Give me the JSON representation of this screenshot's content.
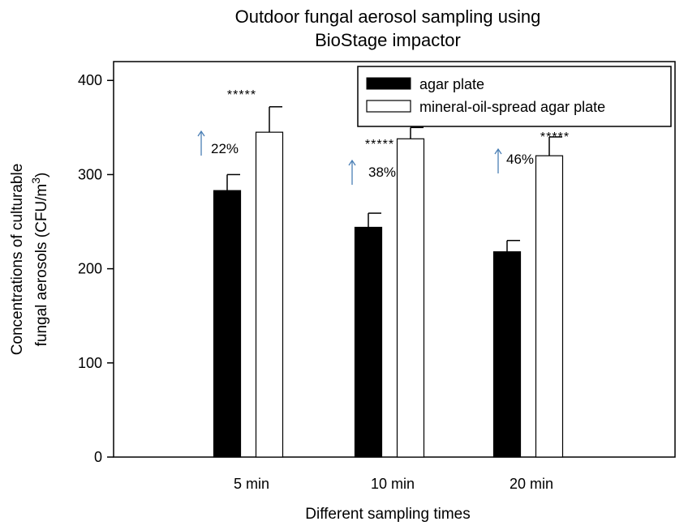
{
  "chart_data": {
    "type": "bar",
    "title_lines": [
      "Outdoor fungal aerosol sampling using",
      "BioStage impactor"
    ],
    "xlabel": "Different sampling times",
    "ylabel_line1": "Concentrations of culturable",
    "ylabel_line2_prefix": "fungal aerosols (CFU/m",
    "ylabel_line2_sup": "3",
    "ylabel_line2_suffix": ")",
    "categories": [
      "5 min",
      "10 min",
      "20 min"
    ],
    "series": [
      {
        "name": "agar plate",
        "values": [
          283,
          244,
          218
        ],
        "errors": [
          17,
          15,
          12
        ],
        "color": "#000000"
      },
      {
        "name": "mineral-oil-spread agar plate",
        "values": [
          345,
          338,
          320
        ],
        "errors": [
          27,
          12,
          20
        ],
        "color": "#ffffff"
      }
    ],
    "ylim": [
      0,
      420
    ],
    "yticks": [
      0,
      100,
      200,
      300,
      400
    ],
    "ytick_labels": [
      "0",
      "100",
      "200",
      "300",
      "400"
    ],
    "legend_position": "top-right",
    "grid": false,
    "annotations": {
      "significance": [
        "*****",
        "*****",
        "*****"
      ],
      "increase_labels": [
        "22%",
        "38%",
        "46%"
      ],
      "arrow_color": "#4a7fb5"
    }
  }
}
